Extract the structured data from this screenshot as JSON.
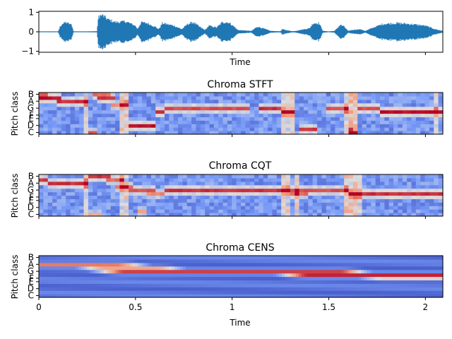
{
  "chart_data": [
    {
      "type": "line",
      "title": "",
      "xlabel": "Time",
      "ylabel": "",
      "xlim": [
        0,
        2.09
      ],
      "ylim": [
        -1.05,
        1.05
      ],
      "yticks": [
        "1",
        "0",
        "−1"
      ],
      "yticks_values": [
        1,
        0,
        -1
      ],
      "series_color": "#1f77b4",
      "envelope": {
        "x": [
          0.0,
          0.05,
          0.1,
          0.11,
          0.12,
          0.14,
          0.17,
          0.18,
          0.25,
          0.3,
          0.31,
          0.33,
          0.36,
          0.4,
          0.45,
          0.5,
          0.51,
          0.53,
          0.56,
          0.6,
          0.62,
          0.64,
          0.66,
          0.7,
          0.74,
          0.77,
          0.8,
          0.83,
          0.86,
          0.88,
          0.92,
          0.95,
          0.98,
          1.0,
          1.03,
          1.1,
          1.13,
          1.16,
          1.2,
          1.25,
          1.26,
          1.3,
          1.32,
          1.35,
          1.4,
          1.42,
          1.45,
          1.47,
          1.5,
          1.53,
          1.56,
          1.58,
          1.6,
          1.62,
          1.66,
          1.69,
          1.72,
          1.78,
          1.85,
          1.92,
          2.0,
          2.05,
          2.09
        ],
        "amp": [
          0.01,
          0.01,
          0.02,
          0.3,
          0.45,
          0.55,
          0.4,
          0.02,
          0.02,
          0.03,
          0.92,
          0.95,
          0.7,
          0.55,
          0.6,
          0.35,
          0.15,
          0.55,
          0.5,
          0.3,
          0.15,
          0.5,
          0.45,
          0.35,
          0.15,
          0.45,
          0.55,
          0.3,
          0.1,
          0.35,
          0.25,
          0.55,
          0.55,
          0.4,
          0.1,
          0.05,
          0.3,
          0.2,
          0.05,
          0.03,
          0.15,
          0.05,
          0.03,
          0.1,
          0.2,
          0.5,
          0.5,
          0.05,
          0.02,
          0.05,
          0.4,
          0.3,
          0.05,
          0.1,
          0.15,
          0.05,
          0.2,
          0.45,
          0.5,
          0.45,
          0.35,
          0.15,
          0.05
        ]
      }
    },
    {
      "type": "heatmap",
      "title": "Chroma STFT",
      "xlabel": "",
      "ylabel": "Pitch class",
      "xlim": [
        0,
        2.09
      ],
      "yticks": [
        "C",
        "D",
        "E",
        "F",
        "G",
        "A",
        "B"
      ],
      "yticks_rows": [
        0,
        2,
        4,
        5,
        7,
        9,
        11
      ],
      "rows": 12,
      "colormap": "coolwarm",
      "ridges": [
        {
          "row": 10,
          "x": [
            0.0,
            0.12
          ],
          "level": 1.0
        },
        {
          "row": 11,
          "x": [
            0.0,
            0.04
          ],
          "level": 0.9
        },
        {
          "row": 9,
          "x": [
            0.1,
            0.26
          ],
          "level": 0.95
        },
        {
          "row": 10,
          "x": [
            0.3,
            0.4
          ],
          "level": 0.95
        },
        {
          "row": 11,
          "x": [
            0.28,
            0.36
          ],
          "level": 0.85
        },
        {
          "row": 0,
          "x": [
            0.26,
            0.3
          ],
          "level": 0.9
        },
        {
          "row": 8,
          "x": [
            0.36,
            0.46
          ],
          "level": 0.8
        },
        {
          "row": 2,
          "x": [
            0.46,
            0.6
          ],
          "level": 1.0
        },
        {
          "row": 6,
          "x": [
            0.6,
            0.66
          ],
          "level": 0.95
        },
        {
          "row": 7,
          "x": [
            0.66,
            1.08
          ],
          "level": 0.9
        },
        {
          "row": 7,
          "x": [
            1.14,
            1.26
          ],
          "level": 0.95
        },
        {
          "row": 6,
          "x": [
            1.26,
            1.32
          ],
          "level": 0.8
        },
        {
          "row": 1,
          "x": [
            1.34,
            1.44
          ],
          "level": 0.95
        },
        {
          "row": 7,
          "x": [
            1.48,
            1.6
          ],
          "level": 0.9
        },
        {
          "row": 0,
          "x": [
            1.6,
            1.64
          ],
          "level": 0.9
        },
        {
          "row": 7,
          "x": [
            1.66,
            1.76
          ],
          "level": 0.9
        },
        {
          "row": 6,
          "x": [
            1.76,
            2.09
          ],
          "level": 1.0
        }
      ],
      "bright_columns": [
        0.25,
        0.44,
        1.28,
        1.32,
        1.6,
        1.64,
        2.06
      ],
      "vertical_bands": [
        {
          "x": [
            1.6,
            1.64
          ],
          "level": 0.65
        }
      ]
    },
    {
      "type": "heatmap",
      "title": "Chroma CQT",
      "xlabel": "",
      "ylabel": "Pitch class",
      "xlim": [
        0,
        2.09
      ],
      "yticks": [
        "C",
        "D",
        "E",
        "F",
        "G",
        "A",
        "B"
      ],
      "yticks_rows": [
        0,
        2,
        4,
        5,
        7,
        9,
        11
      ],
      "rows": 12,
      "colormap": "coolwarm",
      "ridges": [
        {
          "row": 10,
          "x": [
            0.0,
            0.04
          ],
          "level": 0.95
        },
        {
          "row": 9,
          "x": [
            0.04,
            0.26
          ],
          "level": 0.95
        },
        {
          "row": 11,
          "x": [
            0.26,
            0.36
          ],
          "level": 0.95
        },
        {
          "row": 10,
          "x": [
            0.34,
            0.44
          ],
          "level": 0.85
        },
        {
          "row": 8,
          "x": [
            0.4,
            0.48
          ],
          "level": 0.85
        },
        {
          "row": 7,
          "x": [
            0.46,
            0.6
          ],
          "level": 0.9
        },
        {
          "row": 6,
          "x": [
            0.56,
            0.66
          ],
          "level": 0.8
        },
        {
          "row": 7,
          "x": [
            0.66,
            1.3
          ],
          "level": 0.95
        },
        {
          "row": 6,
          "x": [
            1.3,
            1.4
          ],
          "level": 0.85
        },
        {
          "row": 7,
          "x": [
            1.3,
            1.6
          ],
          "level": 0.9
        },
        {
          "row": 6,
          "x": [
            1.6,
            2.09
          ],
          "level": 0.95
        },
        {
          "row": 1,
          "x": [
            0.5,
            0.56
          ],
          "level": 0.75
        },
        {
          "row": 0,
          "x": [
            0.26,
            0.32
          ],
          "level": 0.7
        }
      ],
      "bright_columns": [
        0.24,
        0.44,
        1.28,
        1.33,
        1.6,
        1.65
      ],
      "vertical_bands": [
        {
          "x": [
            1.58,
            1.66
          ],
          "level": 0.6
        }
      ]
    },
    {
      "type": "heatmap",
      "title": "Chroma CENS",
      "xlabel": "Time",
      "ylabel": "Pitch class",
      "xlim": [
        0,
        2.09
      ],
      "xticks": [
        "0",
        "0.5",
        "1",
        "1.5",
        "2"
      ],
      "xticks_values": [
        0,
        0.5,
        1,
        1.5,
        2
      ],
      "yticks": [
        "C",
        "D",
        "E",
        "F",
        "G",
        "A",
        "B"
      ],
      "yticks_rows": [
        0,
        2,
        4,
        5,
        7,
        9,
        11
      ],
      "rows": 12,
      "colormap": "coolwarm",
      "smooth": true,
      "ridges": [
        {
          "row": 9,
          "x": [
            0.0,
            0.4
          ],
          "level": 0.8
        },
        {
          "row": 8,
          "x": [
            0.35,
            0.6
          ],
          "level": 0.7
        },
        {
          "row": 7,
          "x": [
            0.45,
            1.55
          ],
          "level": 0.9
        },
        {
          "row": 6,
          "x": [
            1.4,
            2.09
          ],
          "level": 0.95
        },
        {
          "row": 5,
          "x": [
            1.8,
            2.09
          ],
          "level": 0.55
        }
      ],
      "bright_columns": [],
      "vertical_bands": []
    }
  ]
}
